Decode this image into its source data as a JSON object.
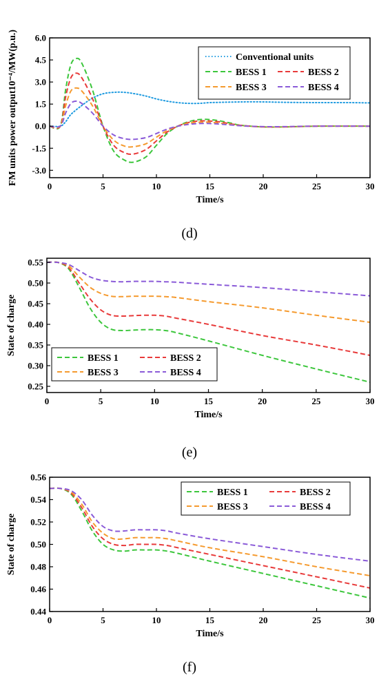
{
  "colors": {
    "conventional": "#1f9be0",
    "bess1": "#3cc63c",
    "bess2": "#e83a3a",
    "bess3": "#f59a2e",
    "bess4": "#8a5ad8"
  },
  "panel_labels": [
    "(d)",
    "(e)",
    "(f)"
  ],
  "chart_data": [
    {
      "type": "line",
      "panel": "(d)",
      "xlabel": "Time/s",
      "ylabel": "FM units power output10⁻⁴/MW(p.u.)",
      "xlim": [
        0,
        30
      ],
      "ylim": [
        -3.5,
        6.0
      ],
      "xticks": [
        "0",
        "5",
        "10",
        "15",
        "20",
        "25",
        "30"
      ],
      "yticks": [
        "6.0",
        "4.5",
        "3.0",
        "1.5",
        "0.0",
        "-1.5",
        "-3.0"
      ],
      "legend_position": "top-right",
      "series": [
        {
          "name": "Conventional units",
          "color_key": "conventional",
          "style": "dotted",
          "x": [
            0,
            1,
            1.5,
            2,
            3,
            4,
            5,
            6,
            7,
            8,
            9,
            10,
            11,
            12,
            13,
            14,
            15,
            16,
            18,
            20,
            22,
            25,
            28,
            30
          ],
          "y": [
            0,
            0,
            0.3,
            0.8,
            1.4,
            1.9,
            2.2,
            2.3,
            2.3,
            2.2,
            2.05,
            1.85,
            1.7,
            1.6,
            1.55,
            1.55,
            1.6,
            1.62,
            1.65,
            1.65,
            1.62,
            1.6,
            1.6,
            1.58
          ]
        },
        {
          "name": "BESS 1",
          "color_key": "bess1",
          "style": "dashed",
          "x": [
            0,
            1,
            1.5,
            2,
            2.5,
            3,
            4,
            5,
            6,
            7,
            7.8,
            9,
            10,
            11,
            12,
            13,
            14,
            15,
            16,
            17,
            18,
            20,
            22,
            25,
            30
          ],
          "y": [
            0,
            0,
            2.5,
            4.2,
            4.6,
            4.3,
            2.5,
            0,
            -1.7,
            -2.3,
            -2.45,
            -2.1,
            -1.3,
            -0.5,
            0,
            0.3,
            0.45,
            0.45,
            0.35,
            0.2,
            0.05,
            -0.05,
            -0.05,
            0,
            0
          ]
        },
        {
          "name": "BESS 2",
          "color_key": "bess2",
          "style": "dashed",
          "x": [
            0,
            1,
            1.5,
            2,
            2.5,
            3,
            4,
            5,
            6,
            7,
            7.8,
            9,
            10,
            11,
            12,
            13,
            14,
            15,
            16,
            17,
            18,
            20,
            22,
            25,
            30
          ],
          "y": [
            0,
            0,
            2.0,
            3.3,
            3.6,
            3.3,
            1.9,
            0,
            -1.3,
            -1.8,
            -1.9,
            -1.6,
            -1.0,
            -0.4,
            0,
            0.25,
            0.35,
            0.35,
            0.28,
            0.15,
            0.05,
            -0.05,
            -0.05,
            0,
            0
          ]
        },
        {
          "name": "BESS 3",
          "color_key": "bess3",
          "style": "dashed",
          "x": [
            0,
            1,
            1.5,
            2,
            2.5,
            3,
            4,
            5,
            6,
            7,
            7.8,
            9,
            10,
            11,
            12,
            13,
            14,
            15,
            16,
            17,
            18,
            20,
            22,
            25,
            30
          ],
          "y": [
            0,
            0,
            1.4,
            2.4,
            2.6,
            2.4,
            1.4,
            0,
            -0.95,
            -1.35,
            -1.4,
            -1.2,
            -0.75,
            -0.3,
            0,
            0.2,
            0.27,
            0.27,
            0.2,
            0.12,
            0.03,
            -0.05,
            -0.05,
            0,
            0
          ]
        },
        {
          "name": "BESS 4",
          "color_key": "bess4",
          "style": "dashed",
          "x": [
            0,
            1,
            1.5,
            2,
            2.5,
            3,
            4,
            5,
            6,
            7,
            7.8,
            9,
            10,
            11,
            12,
            13,
            14,
            15,
            16,
            17,
            18,
            20,
            22,
            25,
            30
          ],
          "y": [
            0,
            0,
            0.9,
            1.55,
            1.7,
            1.55,
            0.9,
            0,
            -0.6,
            -0.85,
            -0.9,
            -0.78,
            -0.5,
            -0.2,
            0,
            0.12,
            0.18,
            0.18,
            0.14,
            0.08,
            0.02,
            -0.03,
            -0.03,
            0,
            0
          ]
        }
      ]
    },
    {
      "type": "line",
      "panel": "(e)",
      "xlabel": "Time/s",
      "ylabel": "State of charge",
      "xlim": [
        0,
        30
      ],
      "ylim": [
        0.235,
        0.56
      ],
      "xticks": [
        "0",
        "5",
        "10",
        "15",
        "20",
        "25",
        "30"
      ],
      "yticks": [
        "0.55",
        "0.50",
        "0.45",
        "0.40",
        "0.35",
        "0.30",
        "0.25"
      ],
      "legend_position": "bottom-left",
      "series": [
        {
          "name": "BESS 1",
          "color_key": "bess1",
          "style": "dashed",
          "x": [
            0,
            1,
            2,
            3,
            4,
            5,
            6,
            7,
            8,
            9,
            10,
            11,
            12,
            15,
            20,
            25,
            30
          ],
          "y": [
            0.55,
            0.55,
            0.535,
            0.49,
            0.44,
            0.405,
            0.388,
            0.385,
            0.386,
            0.387,
            0.387,
            0.385,
            0.38,
            0.36,
            0.325,
            0.292,
            0.26
          ]
        },
        {
          "name": "BESS 2",
          "color_key": "bess2",
          "style": "dashed",
          "x": [
            0,
            1,
            2,
            3,
            4,
            5,
            6,
            7,
            8,
            9,
            10,
            11,
            12,
            15,
            20,
            25,
            30
          ],
          "y": [
            0.55,
            0.55,
            0.538,
            0.5,
            0.462,
            0.435,
            0.422,
            0.42,
            0.421,
            0.422,
            0.422,
            0.42,
            0.415,
            0.4,
            0.373,
            0.35,
            0.325
          ]
        },
        {
          "name": "BESS 3",
          "color_key": "bess3",
          "style": "dashed",
          "x": [
            0,
            1,
            2,
            3,
            4,
            5,
            6,
            7,
            8,
            9,
            10,
            11,
            12,
            15,
            20,
            25,
            30
          ],
          "y": [
            0.55,
            0.55,
            0.542,
            0.515,
            0.49,
            0.475,
            0.468,
            0.467,
            0.468,
            0.468,
            0.468,
            0.467,
            0.465,
            0.455,
            0.44,
            0.422,
            0.405
          ]
        },
        {
          "name": "BESS 4",
          "color_key": "bess4",
          "style": "dashed",
          "x": [
            0,
            1,
            2,
            3,
            4,
            5,
            6,
            7,
            8,
            9,
            10,
            11,
            12,
            15,
            20,
            25,
            30
          ],
          "y": [
            0.55,
            0.55,
            0.545,
            0.53,
            0.515,
            0.507,
            0.504,
            0.503,
            0.504,
            0.504,
            0.504,
            0.503,
            0.502,
            0.497,
            0.489,
            0.479,
            0.469
          ]
        }
      ]
    },
    {
      "type": "line",
      "panel": "(f)",
      "xlabel": "Time/s",
      "ylabel": "State of charge",
      "xlim": [
        0,
        30
      ],
      "ylim": [
        0.44,
        0.56
      ],
      "xticks": [
        "0",
        "5",
        "10",
        "15",
        "20",
        "25",
        "30"
      ],
      "yticks": [
        "0.56",
        "0.54",
        "0.52",
        "0.50",
        "0.48",
        "0.46",
        "0.44"
      ],
      "legend_position": "top-right",
      "series": [
        {
          "name": "BESS 1",
          "color_key": "bess1",
          "style": "dashed",
          "x": [
            0,
            1,
            2,
            3,
            4,
            5,
            6,
            7,
            8,
            9,
            10,
            11,
            12,
            15,
            20,
            25,
            30
          ],
          "y": [
            0.55,
            0.55,
            0.545,
            0.53,
            0.512,
            0.5,
            0.495,
            0.494,
            0.495,
            0.495,
            0.495,
            0.494,
            0.492,
            0.485,
            0.474,
            0.463,
            0.452
          ]
        },
        {
          "name": "BESS 2",
          "color_key": "bess2",
          "style": "dashed",
          "x": [
            0,
            1,
            2,
            3,
            4,
            5,
            6,
            7,
            8,
            9,
            10,
            11,
            12,
            15,
            20,
            25,
            30
          ],
          "y": [
            0.55,
            0.55,
            0.546,
            0.533,
            0.516,
            0.505,
            0.5,
            0.499,
            0.5,
            0.5,
            0.5,
            0.499,
            0.497,
            0.491,
            0.481,
            0.471,
            0.461
          ]
        },
        {
          "name": "BESS 3",
          "color_key": "bess3",
          "style": "dashed",
          "x": [
            0,
            1,
            2,
            3,
            4,
            5,
            6,
            7,
            8,
            9,
            10,
            11,
            12,
            15,
            20,
            25,
            30
          ],
          "y": [
            0.55,
            0.55,
            0.547,
            0.536,
            0.52,
            0.51,
            0.505,
            0.505,
            0.506,
            0.506,
            0.506,
            0.505,
            0.503,
            0.497,
            0.489,
            0.48,
            0.472
          ]
        },
        {
          "name": "BESS 4",
          "color_key": "bess4",
          "style": "dashed",
          "x": [
            0,
            1,
            2,
            3,
            4,
            5,
            6,
            7,
            8,
            9,
            10,
            11,
            12,
            15,
            20,
            25,
            30
          ],
          "y": [
            0.55,
            0.55,
            0.548,
            0.54,
            0.526,
            0.516,
            0.512,
            0.512,
            0.513,
            0.513,
            0.513,
            0.512,
            0.51,
            0.505,
            0.498,
            0.491,
            0.485
          ]
        }
      ]
    }
  ]
}
